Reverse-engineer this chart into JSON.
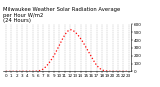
{
  "title": "Milwaukee Weather Solar Radiation Average",
  "subtitle": "per Hour W/m2",
  "subtitle2": "(24 Hours)",
  "hours": [
    0,
    1,
    2,
    3,
    4,
    5,
    6,
    7,
    8,
    9,
    10,
    11,
    12,
    13,
    14,
    15,
    16,
    17,
    18,
    19,
    20,
    21,
    22,
    23
  ],
  "values": [
    0,
    0,
    0,
    0,
    0,
    0,
    5,
    30,
    100,
    200,
    330,
    460,
    530,
    500,
    420,
    310,
    190,
    80,
    20,
    3,
    0,
    0,
    0,
    0
  ],
  "line_color": "#ff0000",
  "bg_color": "#ffffff",
  "grid_color": "#999999",
  "title_color": "#000000",
  "ylim": [
    0,
    600
  ],
  "yticks": [
    0,
    100,
    200,
    300,
    400,
    500,
    600
  ],
  "title_fontsize": 3.8,
  "tick_fontsize": 3.0,
  "linewidth": 0.9
}
